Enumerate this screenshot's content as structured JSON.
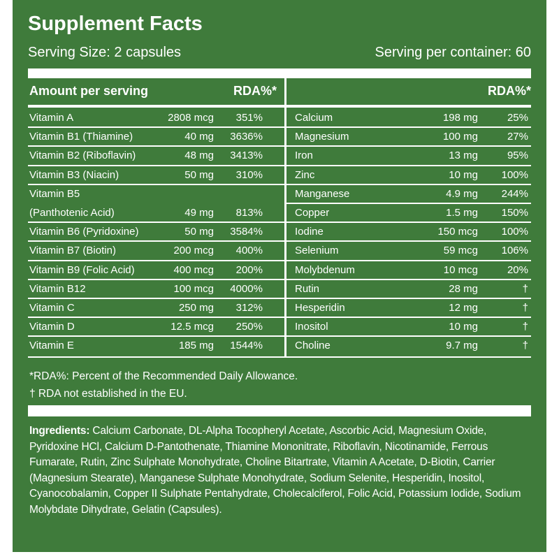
{
  "header": {
    "title": "Supplement Facts",
    "serving_size": "Serving Size: 2 capsules",
    "servings_per_container": "Serving per container: 60"
  },
  "table": {
    "left_header": {
      "label": "Amount per serving",
      "rda": "RDA%*"
    },
    "right_header": {
      "rda": "RDA%*"
    },
    "left_rows": [
      [
        "Vitamin A",
        "2808 mcg",
        "351%"
      ],
      [
        "Vitamin B1 (Thiamine)",
        "40 mg",
        "3636%"
      ],
      [
        "Vitamin B2 (Riboflavin)",
        "48 mg",
        "3413%"
      ],
      [
        "Vitamin B3 (Niacin)",
        "50 mg",
        "310%"
      ],
      [
        "Vitamin B5\n(Panthotenic Acid)",
        "49 mg",
        "813%"
      ],
      [
        "Vitamin B6 (Pyridoxine)",
        "50 mg",
        "3584%"
      ],
      [
        "Vitamin B7 (Biotin)",
        "200 mcg",
        "400%"
      ],
      [
        "Vitamin B9 (Folic Acid)",
        "400 mcg",
        "200%"
      ],
      [
        "Vitamin B12",
        "100 mcg",
        "4000%"
      ],
      [
        "Vitamin C",
        "250 mg",
        "312%"
      ],
      [
        "Vitamin D",
        "12.5 mcg",
        "250%"
      ],
      [
        "Vitamin E",
        "185 mg",
        "1544%"
      ]
    ],
    "right_rows": [
      [
        "Calcium",
        "198 mg",
        "25%"
      ],
      [
        "Magnesium",
        "100 mg",
        "27%"
      ],
      [
        "Iron",
        "13 mg",
        "95%"
      ],
      [
        "Zinc",
        "10 mg",
        "100%"
      ],
      [
        "Manganese",
        "4.9 mg",
        "244%"
      ],
      [
        "Copper",
        "1.5 mg",
        "150%"
      ],
      [
        "Iodine",
        "150 mcg",
        "100%"
      ],
      [
        "Selenium",
        "59 mcg",
        "106%"
      ],
      [
        "Molybdenum",
        "10 mcg",
        "20%"
      ],
      [
        "Rutin",
        "28 mg",
        "†"
      ],
      [
        "Hesperidin",
        "12 mg",
        "†"
      ],
      [
        "Inositol",
        "10 mg",
        "†"
      ],
      [
        "Choline",
        "9.7 mg",
        "†"
      ]
    ]
  },
  "footnotes": [
    "*RDA%: Percent of the Recommended Daily Allowance.",
    "† RDA not established in the EU."
  ],
  "ingredients": {
    "label": "Ingredients:",
    "text": "Calcium Carbonate, DL-Alpha Tocopheryl Acetate, Ascorbic Acid, Magnesium Oxide, Pyridoxine HCl, Calcium D-Pantothenate, Thiamine Mononitrate, Riboflavin, Nicotinamide, Ferrous Fumarate, Rutin, Zinc Sulphate Monohydrate, Choline Bitartrate, Vitamin A Acetate, D-Biotin, Carrier (Magnesium Stearate), Manganese Sulphate Monohydrate, Sodium Selenite, Hesperidin, Inositol, Cyanocobalamin, Copper II Sulphate Pentahydrate, Cholecalciferol, Folic Acid, Potassium Iodide, Sodium Molybdate Dihydrate, Gelatin (Capsules)."
  }
}
